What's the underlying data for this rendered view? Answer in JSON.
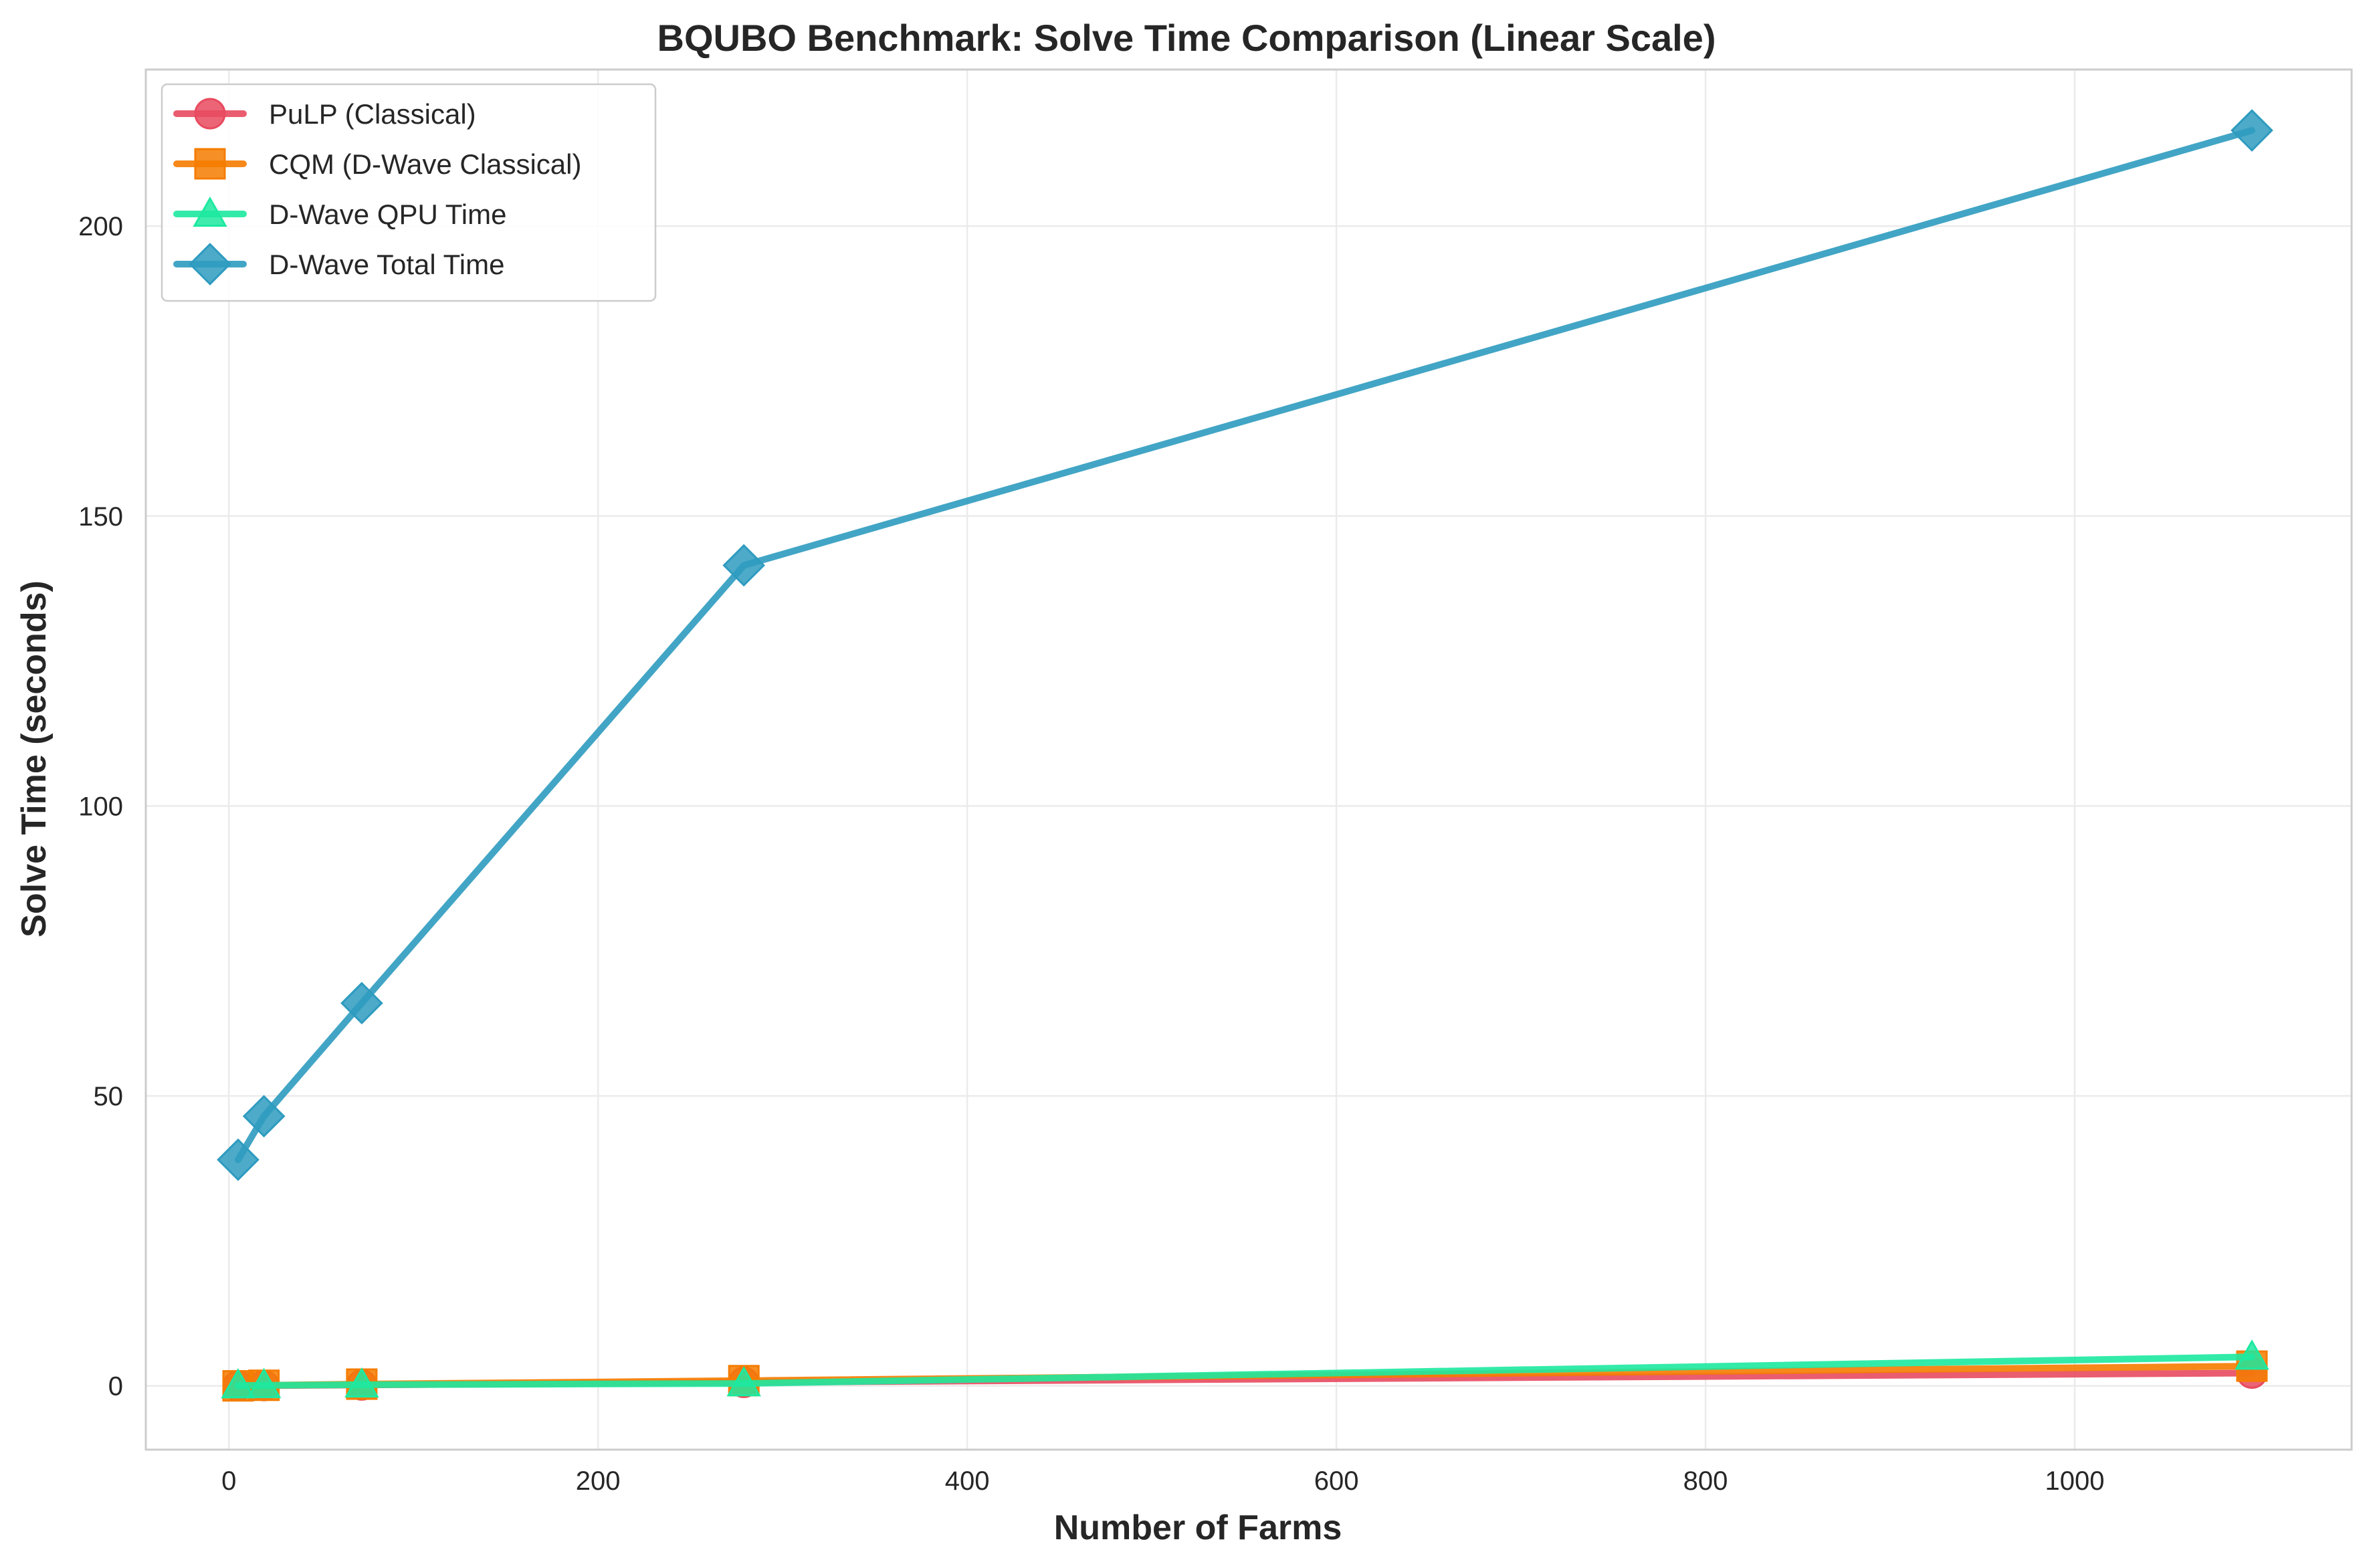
{
  "chart_data": {
    "type": "line",
    "title": "BQUBO Benchmark: Solve Time Comparison (Linear Scale)",
    "xlabel": "Number of Farms",
    "ylabel": "Solve Time (seconds)",
    "xlim": [
      -45,
      1150
    ],
    "ylim": [
      -11,
      227
    ],
    "xticks": [
      0,
      200,
      400,
      600,
      800,
      1000
    ],
    "yticks": [
      0,
      50,
      100,
      150,
      200
    ],
    "grid": true,
    "legend_position": "top-left",
    "series": [
      {
        "name": "PuLP (Classical)",
        "color": "#e84a5f",
        "marker": "circle",
        "x": [
          5,
          19,
          72,
          279,
          1096
        ],
        "y": [
          0.03,
          0.05,
          0.15,
          0.6,
          2.2
        ]
      },
      {
        "name": "CQM (D-Wave Classical)",
        "color": "#f57c00",
        "marker": "square",
        "x": [
          5,
          19,
          72,
          279,
          1096
        ],
        "y": [
          0.0,
          0.1,
          0.3,
          0.9,
          3.4
        ]
      },
      {
        "name": "D-Wave QPU Time",
        "color": "#1de9a0",
        "marker": "triangle",
        "x": [
          5,
          19,
          72,
          279,
          1096
        ],
        "y": [
          0.05,
          0.1,
          0.2,
          0.4,
          5.0
        ]
      },
      {
        "name": "D-Wave Total Time",
        "color": "#2e9bbf",
        "marker": "diamond",
        "x": [
          5,
          19,
          72,
          279,
          1096
        ],
        "y": [
          39.0,
          46.5,
          66.0,
          141.5,
          216.5
        ]
      }
    ]
  }
}
